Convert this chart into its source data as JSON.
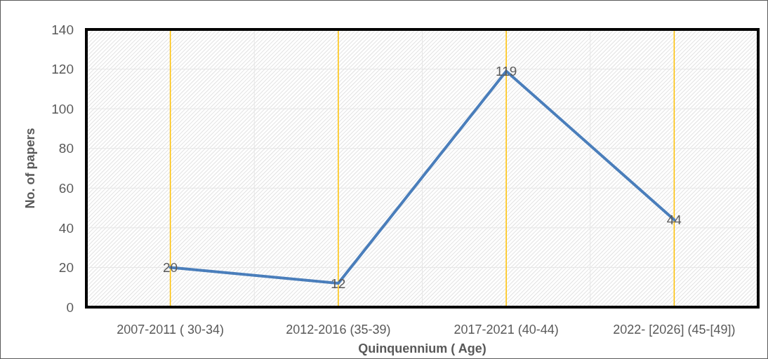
{
  "chart_data": {
    "type": "line",
    "xlabel": "Quinquennium ( Age)",
    "ylabel": "No. of papers",
    "categories": [
      "2007-2011 ( 30-34)",
      "2012-2016 (35-39)",
      "2017-2021 (40-44)",
      "2022- [2026] (45-[49])"
    ],
    "series": [
      {
        "color": "#4a7ebb",
        "values": [
          20,
          12,
          119,
          44
        ]
      }
    ],
    "ylim": [
      0,
      140
    ],
    "yticks": [
      0,
      20,
      40,
      60,
      80,
      100,
      120,
      140
    ],
    "grid": true,
    "data_labels": true,
    "marker": "none",
    "line_style": "solid"
  }
}
